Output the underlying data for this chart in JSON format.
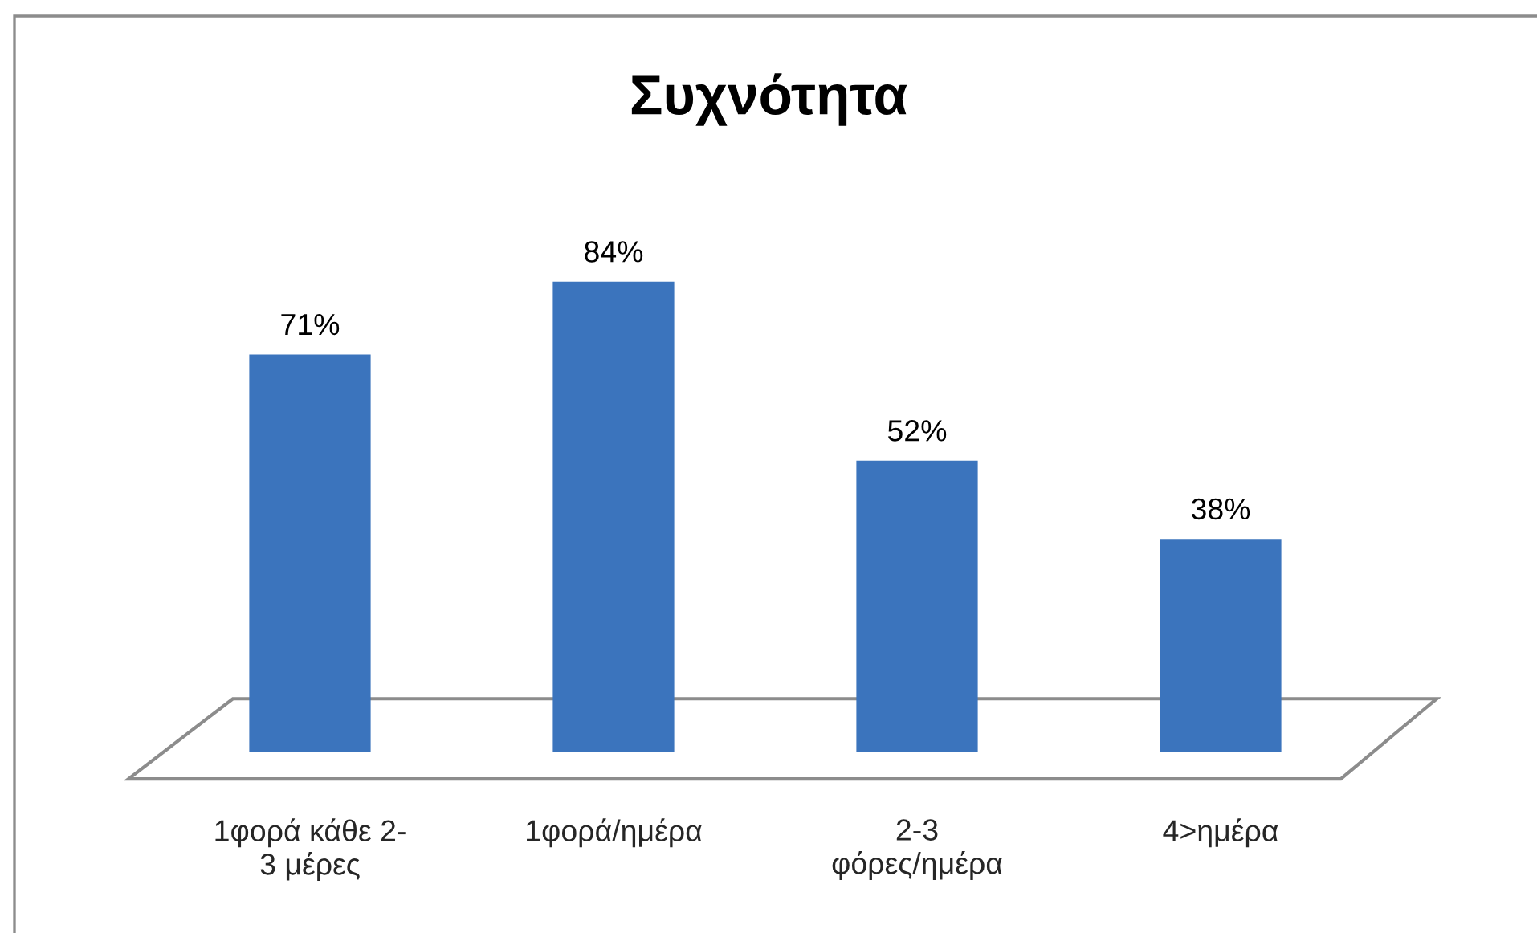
{
  "chart_data": {
    "type": "bar",
    "title": "Συχνότητα",
    "categories": [
      "1φορά κάθε 2-\n3 μέρες",
      "1φορά/ημέρα",
      "2-3\nφόρες/ημέρα",
      "4>ημέρα"
    ],
    "values": [
      71,
      84,
      52,
      38
    ],
    "color": "#3b74bd",
    "value_labels": [
      "71%",
      "84%",
      "52%",
      "38%"
    ]
  }
}
